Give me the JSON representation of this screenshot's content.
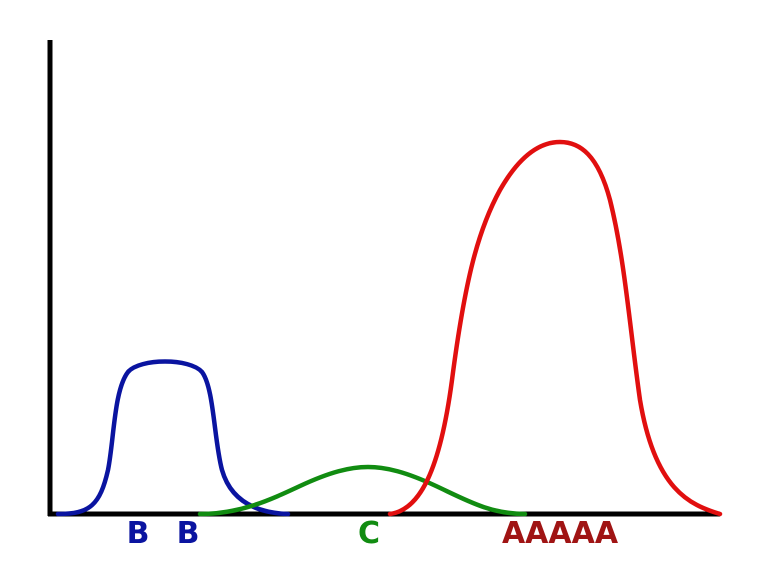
{
  "colors": {
    "axis": "#000000",
    "blue": "#0a14a0",
    "green": "#118c11",
    "red": "#e10f0f",
    "label_red": "#a01414"
  },
  "curves": {
    "blue": {
      "color": "#0a14a0",
      "peak": "plateau",
      "relative_height": 0.42
    },
    "green": {
      "color": "#118c11",
      "peak": "bell",
      "relative_height": 0.13
    },
    "red": {
      "color": "#e10f0f",
      "peak": "plateau",
      "relative_height": 1.0
    }
  },
  "labels": {
    "b1": "B",
    "b2": "B",
    "c": "C",
    "a": "AAAAA"
  }
}
